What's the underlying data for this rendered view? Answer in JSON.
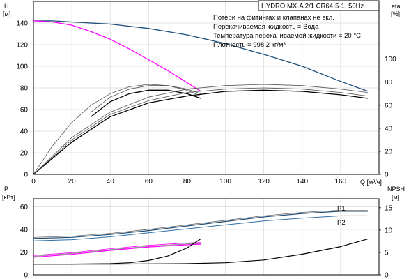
{
  "title": "HYDRO MX-A 2/1 CR64-5-1, 50Hz",
  "notes": [
    "Потери на фитингах и клапанах не вкл.",
    "Перекачиваемая жидкость = Вода",
    "Температура перекачиваемой жидкости = 20 °C",
    "Плотность = 998.2 кг/м³"
  ],
  "colors": {
    "pump_curve": "#1f4e79",
    "reduced_curve": "#ff00ff",
    "efficiency": "#000000",
    "power_p1": "#1f4e79",
    "power_p2": "#2f6fa8",
    "npsh": "#000000",
    "grid": "#d9d9d9",
    "thin_lines": "#555555"
  },
  "chart_data": [
    {
      "type": "line",
      "panel": "top",
      "xlabel": "Q [м³/ч]",
      "ylabel_left": [
        "H",
        "[м]"
      ],
      "ylabel_right": [
        "eta",
        "[%]"
      ],
      "xlim": [
        0,
        180
      ],
      "ylim_left": [
        0,
        160
      ],
      "ylim_right": [
        0,
        150
      ],
      "x_ticks": [
        0,
        20,
        40,
        60,
        80,
        100,
        120,
        140,
        160
      ],
      "y_ticks_left": [
        0,
        20,
        40,
        60,
        80,
        100,
        120,
        140
      ],
      "y_ticks_right": [
        0,
        20,
        40,
        60,
        80,
        100
      ],
      "grid": true,
      "series": [
        {
          "key": "head_max",
          "axis": "left",
          "color_key": "pump_curve",
          "width": 1.3,
          "x": [
            0,
            10,
            20,
            40,
            60,
            80,
            100,
            120,
            140,
            160,
            174
          ],
          "y": [
            142,
            142,
            141,
            139,
            135,
            129,
            121,
            111,
            100,
            86,
            77
          ]
        },
        {
          "key": "head_reduced",
          "axis": "left",
          "color_key": "reduced_curve",
          "width": 1.3,
          "x": [
            0,
            10,
            20,
            30,
            40,
            50,
            60,
            70,
            80,
            87
          ],
          "y": [
            142,
            141,
            138,
            132,
            125,
            116,
            106,
            96,
            85,
            77
          ]
        },
        {
          "key": "eta_short_a",
          "axis": "right",
          "color_key": "thin_lines",
          "width": 0.8,
          "x": [
            0,
            10,
            20,
            30,
            40,
            50,
            60,
            70,
            80,
            87
          ],
          "y": [
            0,
            25,
            45,
            60,
            70,
            76,
            78,
            77,
            73,
            68
          ]
        },
        {
          "key": "eta_short_b",
          "axis": "right",
          "color_key": "efficiency",
          "width": 1.3,
          "x": [
            30,
            40,
            50,
            60,
            70,
            80,
            87
          ],
          "y": [
            50,
            63,
            70,
            73,
            73,
            70,
            66
          ]
        },
        {
          "key": "eta_short_c",
          "axis": "right",
          "color_key": "thin_lines",
          "width": 0.8,
          "x": [
            30,
            40,
            50,
            60,
            70,
            80,
            87
          ],
          "y": [
            54,
            67,
            74,
            77,
            77,
            74,
            70
          ]
        },
        {
          "key": "eta_long_a",
          "axis": "right",
          "color_key": "thin_lines",
          "width": 0.8,
          "x": [
            0,
            20,
            40,
            60,
            80,
            100,
            120,
            140,
            160,
            174
          ],
          "y": [
            0,
            32,
            54,
            67,
            74,
            77,
            78,
            77,
            74,
            71
          ]
        },
        {
          "key": "eta_long_b",
          "axis": "right",
          "color_key": "efficiency",
          "width": 1.3,
          "x": [
            0,
            20,
            40,
            60,
            80,
            100,
            120,
            140,
            160,
            174
          ],
          "y": [
            0,
            28,
            50,
            62,
            68,
            72,
            73,
            72,
            69,
            66
          ]
        },
        {
          "key": "eta_long_c",
          "axis": "right",
          "color_key": "thin_lines",
          "width": 0.8,
          "x": [
            0,
            20,
            40,
            60,
            80,
            100,
            120,
            140,
            160,
            174
          ],
          "y": [
            0,
            30,
            52,
            64,
            71,
            74,
            75,
            74,
            71,
            68
          ]
        }
      ]
    },
    {
      "type": "line",
      "panel": "bottom",
      "ylabel_left": [
        "P",
        "[кВт]"
      ],
      "ylabel_right": [
        "NPSH",
        "[м]"
      ],
      "xlim": [
        0,
        180
      ],
      "ylim_left": [
        0,
        67
      ],
      "ylim_right": [
        0,
        17
      ],
      "y_ticks_left": [
        0,
        20,
        40,
        60
      ],
      "y_ticks_right": [
        0,
        5,
        10,
        15
      ],
      "grid": true,
      "series": [
        {
          "key": "P1",
          "name": "P1",
          "axis": "left",
          "color_key": "power_p1",
          "width": 1.2,
          "x": [
            0,
            20,
            40,
            60,
            80,
            100,
            120,
            140,
            160,
            174
          ],
          "y": [
            32,
            33,
            35.5,
            39,
            43,
            47,
            51,
            54,
            56,
            56
          ]
        },
        {
          "key": "P1_thin",
          "axis": "left",
          "color_key": "thin_lines",
          "width": 0.7,
          "x": [
            0,
            20,
            40,
            60,
            80,
            100,
            120,
            140,
            160,
            174
          ],
          "y": [
            33,
            34,
            36.5,
            40,
            44,
            48,
            52,
            55,
            57,
            57
          ]
        },
        {
          "key": "P2",
          "name": "P2",
          "axis": "left",
          "color_key": "power_p2",
          "width": 1.0,
          "x": [
            0,
            20,
            40,
            60,
            80,
            100,
            120,
            140,
            160,
            174
          ],
          "y": [
            30,
            31,
            33.5,
            37,
            40.5,
            44,
            47.5,
            50,
            52,
            52
          ]
        },
        {
          "key": "P_reduced_a",
          "axis": "left",
          "color_key": "reduced_curve",
          "width": 1.2,
          "x": [
            0,
            20,
            40,
            60,
            80,
            87
          ],
          "y": [
            15.5,
            18,
            21.5,
            24.5,
            26.5,
            27
          ]
        },
        {
          "key": "P_reduced_b",
          "axis": "left",
          "color_key": "reduced_curve",
          "width": 0.8,
          "x": [
            0,
            20,
            40,
            60,
            80,
            87
          ],
          "y": [
            17,
            19.5,
            23,
            26,
            28,
            28.5
          ]
        },
        {
          "key": "P_reduced_thin",
          "axis": "left",
          "color_key": "thin_lines",
          "width": 0.6,
          "x": [
            0,
            20,
            40,
            60,
            80,
            87
          ],
          "y": [
            16.2,
            18.8,
            22.2,
            25.2,
            27.2,
            27.7
          ]
        },
        {
          "key": "npsh_short",
          "axis": "right",
          "color_key": "npsh",
          "width": 1.2,
          "x": [
            0,
            20,
            40,
            50,
            60,
            70,
            80,
            87
          ],
          "y": [
            2.4,
            2.4,
            2.5,
            2.7,
            3.2,
            4.2,
            6.0,
            8.0
          ]
        },
        {
          "key": "npsh_long",
          "axis": "right",
          "color_key": "npsh",
          "width": 1.2,
          "x": [
            0,
            40,
            80,
            100,
            120,
            140,
            160,
            174
          ],
          "y": [
            2.4,
            2.4,
            2.5,
            2.7,
            3.3,
            4.6,
            6.3,
            8.0
          ]
        }
      ]
    }
  ]
}
